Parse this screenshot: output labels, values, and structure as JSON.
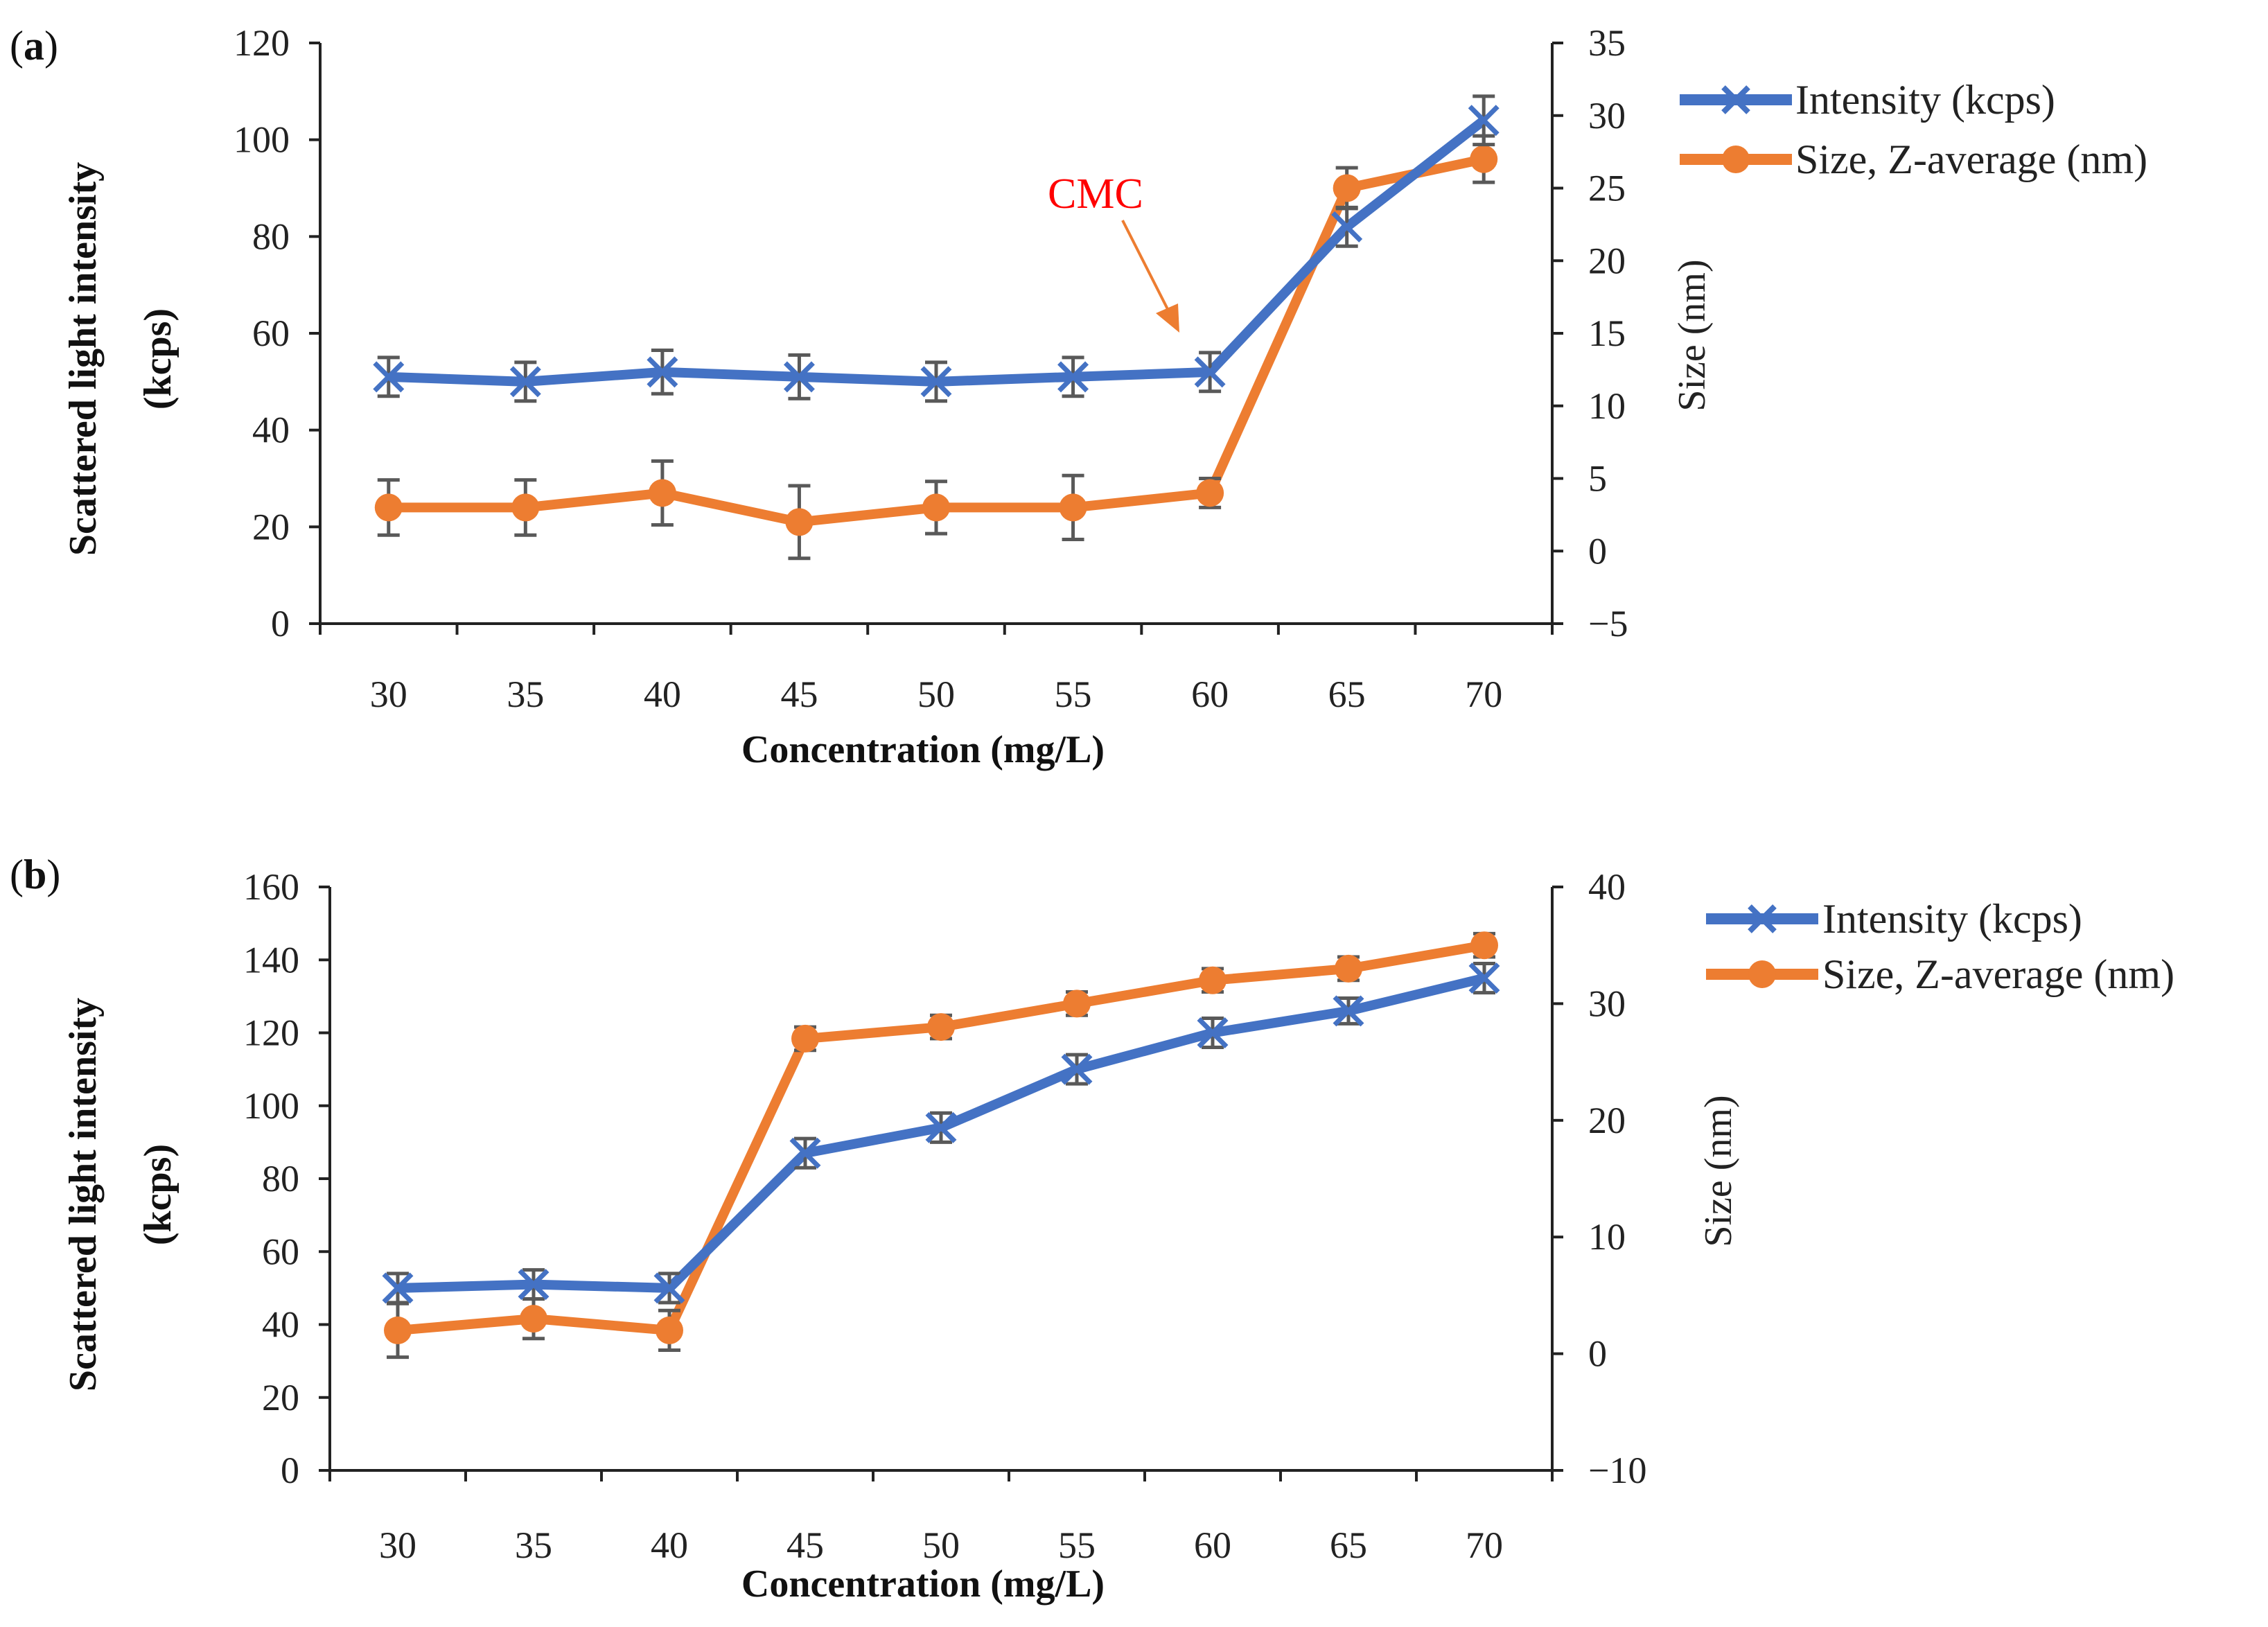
{
  "colors": {
    "intensity": "#4472C4",
    "size": "#ED7D31",
    "errorbar": "#595959",
    "axis": "#222222",
    "annotation": "#FF0000"
  },
  "chart_data": [
    {
      "panel_label": "a",
      "type": "line",
      "categories": [
        "30",
        "35",
        "40",
        "45",
        "50",
        "55",
        "60",
        "65",
        "70"
      ],
      "xlabel": "Concentration (mg/L)",
      "ylabel_line1": "Scattered light intensity",
      "ylabel_line2": "(kcps)",
      "y2label": "Size (nm)",
      "ylim": [
        0,
        120
      ],
      "yticks": [
        0,
        20,
        40,
        60,
        80,
        100,
        120
      ],
      "y2lim": [
        -5,
        35
      ],
      "y2ticks": [
        -5,
        0,
        5,
        10,
        15,
        20,
        25,
        30,
        35
      ],
      "y2tick_labels": [
        "−5",
        "0",
        "5",
        "10",
        "15",
        "20",
        "25",
        "30",
        "35"
      ],
      "series": [
        {
          "name": "Intensity (kcps)",
          "axis": "left",
          "marker": "x",
          "values": [
            51,
            50,
            52,
            51,
            50,
            51,
            52,
            82,
            104
          ],
          "errors": [
            4,
            4,
            4.5,
            4.5,
            4,
            4,
            4,
            4,
            5
          ]
        },
        {
          "name": "Size, Z-average (nm)",
          "axis": "right",
          "marker": "circle",
          "values": [
            3,
            3,
            4,
            2,
            3,
            3,
            4,
            25,
            27
          ],
          "errors": [
            1.9,
            1.9,
            2.2,
            2.5,
            1.8,
            2.2,
            1,
            1.4,
            1.6
          ]
        }
      ],
      "annotation": {
        "text": "CMC",
        "target_category": "60"
      }
    },
    {
      "panel_label": "b",
      "type": "line",
      "categories": [
        "30",
        "35",
        "40",
        "45",
        "50",
        "55",
        "60",
        "65",
        "70"
      ],
      "xlabel": "Concentration (mg/L)",
      "ylabel_line1": "Scattered light intensity",
      "ylabel_line2": "(kcps)",
      "y2label": "Size (nm)",
      "ylim": [
        0,
        160
      ],
      "yticks": [
        0,
        20,
        40,
        60,
        80,
        100,
        120,
        140,
        160
      ],
      "y2lim": [
        -10,
        40
      ],
      "y2ticks": [
        -10,
        0,
        10,
        20,
        30,
        40
      ],
      "y2tick_labels": [
        "−10",
        "0",
        "10",
        "20",
        "30",
        "40"
      ],
      "series": [
        {
          "name": "Intensity (kcps)",
          "axis": "left",
          "marker": "x",
          "values": [
            50,
            51,
            50,
            87,
            94,
            110,
            120,
            126,
            135
          ],
          "errors": [
            4,
            4,
            4,
            4,
            4,
            4,
            4,
            3.5,
            4
          ]
        },
        {
          "name": "Size, Z-average (nm)",
          "axis": "right",
          "marker": "circle",
          "values": [
            2,
            3,
            2,
            27,
            28,
            30,
            32,
            33,
            35
          ],
          "errors": [
            2.3,
            1.7,
            1.7,
            1,
            1,
            1,
            1,
            1,
            1
          ]
        }
      ]
    }
  ]
}
